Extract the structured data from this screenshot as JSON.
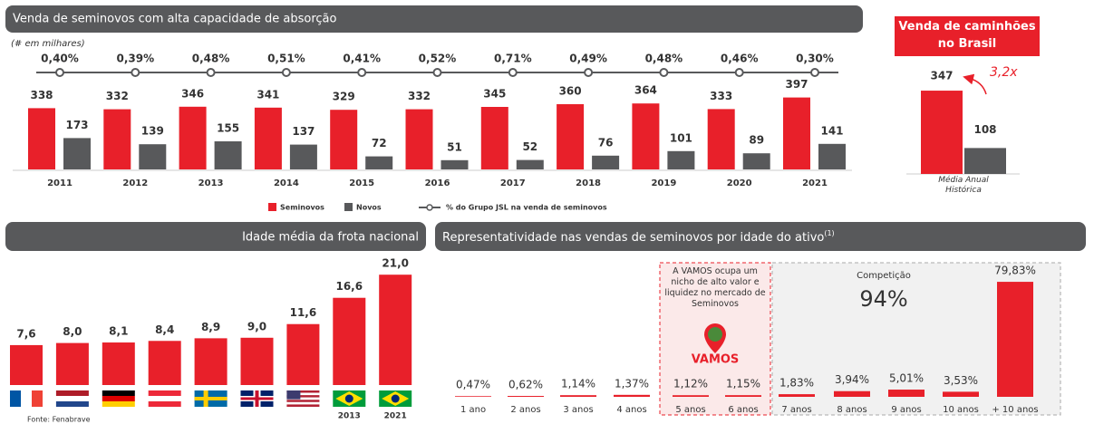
{
  "chart_data": [
    {
      "type": "bar",
      "title": "Venda de seminovos com alta capacidade de absorção",
      "subtitle": "(# em milhares)",
      "categories": [
        "2011",
        "2012",
        "2013",
        "2014",
        "2015",
        "2016",
        "2017",
        "2018",
        "2019",
        "2020",
        "2021"
      ],
      "series": [
        {
          "name": "Seminovos",
          "color": "#e8202a",
          "values": [
            338,
            332,
            346,
            341,
            329,
            332,
            345,
            360,
            364,
            333,
            397
          ]
        },
        {
          "name": "Novos",
          "color": "#58595b",
          "values": [
            173,
            139,
            155,
            137,
            72,
            51,
            52,
            76,
            101,
            89,
            141
          ]
        },
        {
          "name": "% do Grupo JSL na venda de seminovos",
          "type": "line",
          "color": "#58595b",
          "values": [
            0.4,
            0.39,
            0.48,
            0.51,
            0.41,
            0.52,
            0.71,
            0.49,
            0.48,
            0.46,
            0.3
          ],
          "value_labels": [
            "0,40%",
            "0,39%",
            "0,48%",
            "0,51%",
            "0,41%",
            "0,52%",
            "0,71%",
            "0,49%",
            "0,48%",
            "0,46%",
            "0,30%"
          ]
        }
      ]
    },
    {
      "type": "bar",
      "title": "Venda de caminhões no Brasil",
      "categories": [
        "Média Anual Histórica"
      ],
      "series": [
        {
          "color": "#e8202a",
          "values": [
            347
          ]
        },
        {
          "color": "#58595b",
          "values": [
            108
          ]
        }
      ],
      "annotation": "3,2x"
    },
    {
      "type": "bar",
      "title": "Idade média da frota nacional",
      "categories": [
        null,
        null,
        null,
        null,
        null,
        null,
        null,
        "2013",
        "2021"
      ],
      "values": [
        7.6,
        8.0,
        8.1,
        8.4,
        8.9,
        9.0,
        11.6,
        16.6,
        21.0
      ],
      "value_labels": [
        "7,6",
        "8,0",
        "8,1",
        "8,4",
        "8,9",
        "9,0",
        "11,6",
        "16,6",
        "21,0"
      ],
      "color": "#e8202a",
      "source": "Fonte: Fenabrave"
    },
    {
      "type": "bar",
      "title": "Representatividade nas vendas de seminovos por idade do ativo",
      "title_note": "(1)",
      "categories": [
        "1 ano",
        "2 anos",
        "3 anos",
        "4 anos",
        "5 anos",
        "6 anos",
        "7 anos",
        "8 anos",
        "9 anos",
        "10 anos",
        "+ 10 anos"
      ],
      "values": [
        0.47,
        0.62,
        1.14,
        1.37,
        1.12,
        1.15,
        1.83,
        3.94,
        5.01,
        3.53,
        79.83
      ],
      "value_labels": [
        "0,47%",
        "0,62%",
        "1,14%",
        "1,37%",
        "1,12%",
        "1,15%",
        "1,83%",
        "3,94%",
        "5,01%",
        "3,53%",
        "79,83%"
      ],
      "color": "#e8202a",
      "annotations": {
        "vamos_note": "A VAMOS ocupa um nicho de alto valor e liquidez no mercado de Seminovos",
        "logo": "VAMOS",
        "competition_label": "Competição",
        "competition_value": "94%"
      }
    }
  ]
}
